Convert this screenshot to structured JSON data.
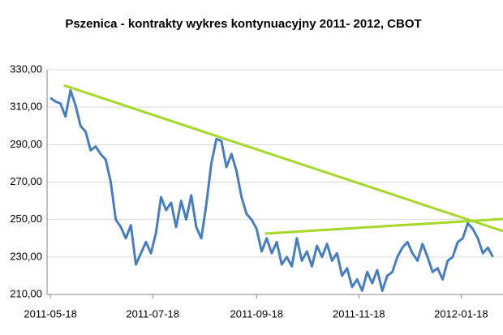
{
  "chart_data": {
    "type": "line",
    "title": "Pszenica - kontrakty wykres kontynuacyjny 2011-  2012, CBOT",
    "x": [
      "2011-05-18",
      "2011-05-21",
      "2011-05-24",
      "2011-05-27",
      "2011-05-30",
      "2011-06-02",
      "2011-06-05",
      "2011-06-08",
      "2011-06-11",
      "2011-06-14",
      "2011-06-17",
      "2011-06-20",
      "2011-06-23",
      "2011-06-26",
      "2011-06-29",
      "2011-07-02",
      "2011-07-05",
      "2011-07-08",
      "2011-07-11",
      "2011-07-14",
      "2011-07-17",
      "2011-07-20",
      "2011-07-23",
      "2011-07-26",
      "2011-07-29",
      "2011-08-01",
      "2011-08-04",
      "2011-08-07",
      "2011-08-10",
      "2011-08-13",
      "2011-08-16",
      "2011-08-19",
      "2011-08-22",
      "2011-08-25",
      "2011-08-28",
      "2011-08-31",
      "2011-09-03",
      "2011-09-06",
      "2011-09-09",
      "2011-09-12",
      "2011-09-15",
      "2011-09-18",
      "2011-09-21",
      "2011-09-24",
      "2011-09-27",
      "2011-09-30",
      "2011-10-03",
      "2011-10-06",
      "2011-10-09",
      "2011-10-12",
      "2011-10-15",
      "2011-10-18",
      "2011-10-21",
      "2011-10-24",
      "2011-10-27",
      "2011-10-30",
      "2011-11-02",
      "2011-11-05",
      "2011-11-08",
      "2011-11-11",
      "2011-11-14",
      "2011-11-17",
      "2011-11-20",
      "2011-11-23",
      "2011-11-26",
      "2011-11-29",
      "2011-12-02",
      "2011-12-05",
      "2011-12-08",
      "2011-12-11",
      "2011-12-14",
      "2011-12-17",
      "2011-12-20",
      "2011-12-23",
      "2011-12-26",
      "2011-12-29",
      "2012-01-01",
      "2012-01-04",
      "2012-01-07",
      "2012-01-10",
      "2012-01-13",
      "2012-01-16",
      "2012-01-19",
      "2012-01-22",
      "2012-01-25",
      "2012-01-28",
      "2012-01-31",
      "2012-02-03",
      "2012-02-06"
    ],
    "series": [
      {
        "color": "#4a7ebb",
        "values": [
          315,
          313,
          312,
          305,
          319,
          311,
          300,
          297,
          287,
          289,
          285,
          282,
          270,
          250,
          246,
          240,
          247,
          226,
          232,
          238,
          232,
          243,
          262,
          255,
          259,
          246,
          260,
          250,
          263,
          246,
          240,
          258,
          280,
          293,
          292,
          278,
          285,
          276,
          262,
          253,
          250,
          245,
          233,
          240,
          232,
          238,
          226,
          230,
          225,
          240,
          228,
          233,
          225,
          236,
          230,
          237,
          228,
          232,
          220,
          224,
          214,
          218,
          212,
          222,
          216,
          223,
          212,
          220,
          222,
          230,
          235,
          238,
          232,
          228,
          237,
          230,
          222,
          224,
          218,
          228,
          230,
          238,
          240,
          248,
          245,
          240,
          232,
          235,
          230
        ]
      }
    ],
    "trendlines": [
      {
        "color": "#a6d829",
        "x": [
          "2011-05-26",
          "2012-02-12"
        ],
        "values": [
          321.7,
          243.8
        ]
      },
      {
        "color": "#a6d829",
        "x": [
          "2011-09-23",
          "2012-02-12"
        ],
        "values": [
          242.5,
          250.3
        ]
      }
    ],
    "xlim": [
      "2011-05-16",
      "2012-02-12"
    ],
    "xticks": [
      "2011-05-18",
      "2011-07-18",
      "2011-09-18",
      "2011-11-18",
      "2012-01-18"
    ],
    "ylim": [
      210,
      330
    ],
    "yticks": [
      {
        "value": 210,
        "label": "210,00"
      },
      {
        "value": 230,
        "label": "230,00"
      },
      {
        "value": 250,
        "label": "250,00"
      },
      {
        "value": 270,
        "label": "270,00"
      },
      {
        "value": 290,
        "label": "290,00"
      },
      {
        "value": 310,
        "label": "310,00"
      },
      {
        "value": 330,
        "label": "330,00"
      }
    ],
    "grid": true
  }
}
